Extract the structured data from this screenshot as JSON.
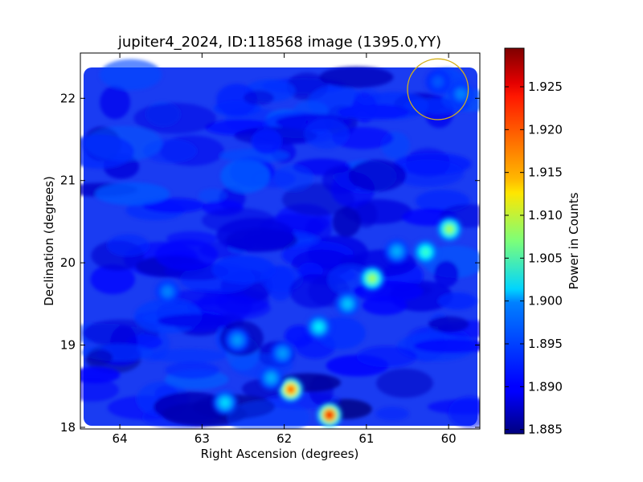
{
  "chart_data": {
    "type": "heatmap",
    "title": "jupiter4_2024, ID:118568 image (1395.0,YY)",
    "xlabel": "Right Ascension (degrees)",
    "ylabel": "Declination (degrees)",
    "x_reversed": true,
    "xlim": [
      64.48,
      59.62
    ],
    "ylim": [
      17.98,
      22.55
    ],
    "x_ticks": [
      64,
      63,
      62,
      61,
      60
    ],
    "y_ticks": [
      18,
      19,
      20,
      21,
      22
    ],
    "x_tick_labels": [
      "64",
      "63",
      "62",
      "61",
      "60"
    ],
    "y_tick_labels": [
      "18",
      "19",
      "20",
      "21",
      "22"
    ],
    "colormap": "jet",
    "colorbar": {
      "label": "Power in Counts",
      "range": [
        1.8845,
        1.9295
      ],
      "ticks": [
        1.885,
        1.89,
        1.895,
        1.9,
        1.905,
        1.91,
        1.915,
        1.92,
        1.925
      ],
      "tick_labels": [
        "1.885",
        "1.890",
        "1.895",
        "1.900",
        "1.905",
        "1.910",
        "1.915",
        "1.920",
        "1.925"
      ]
    },
    "background_level": 1.891,
    "sources": [
      {
        "ra": 61.45,
        "dec": 18.15,
        "value": 1.925
      },
      {
        "ra": 61.92,
        "dec": 18.46,
        "value": 1.921
      },
      {
        "ra": 60.93,
        "dec": 19.81,
        "value": 1.909
      },
      {
        "ra": 59.99,
        "dec": 20.41,
        "value": 1.909
      },
      {
        "ra": 60.28,
        "dec": 20.13,
        "value": 1.904
      },
      {
        "ra": 61.58,
        "dec": 19.22,
        "value": 1.901
      },
      {
        "ra": 62.72,
        "dec": 18.3,
        "value": 1.9
      },
      {
        "ra": 62.16,
        "dec": 18.6,
        "value": 1.898
      },
      {
        "ra": 61.23,
        "dec": 19.5,
        "value": 1.899
      },
      {
        "ra": 60.63,
        "dec": 20.14,
        "value": 1.898
      },
      {
        "ra": 62.02,
        "dec": 18.9,
        "value": 1.897
      },
      {
        "ra": 62.57,
        "dec": 19.06,
        "value": 1.897
      },
      {
        "ra": 63.42,
        "dec": 19.65,
        "value": 1.896
      },
      {
        "ra": 59.85,
        "dec": 22.05,
        "value": 1.896
      },
      {
        "ra": 60.13,
        "dec": 22.2,
        "value": 1.894
      }
    ],
    "annotations": [
      {
        "type": "circle",
        "ra": 60.13,
        "dec": 22.11,
        "radius_deg": 0.37,
        "color": "#d4b01c"
      }
    ]
  }
}
